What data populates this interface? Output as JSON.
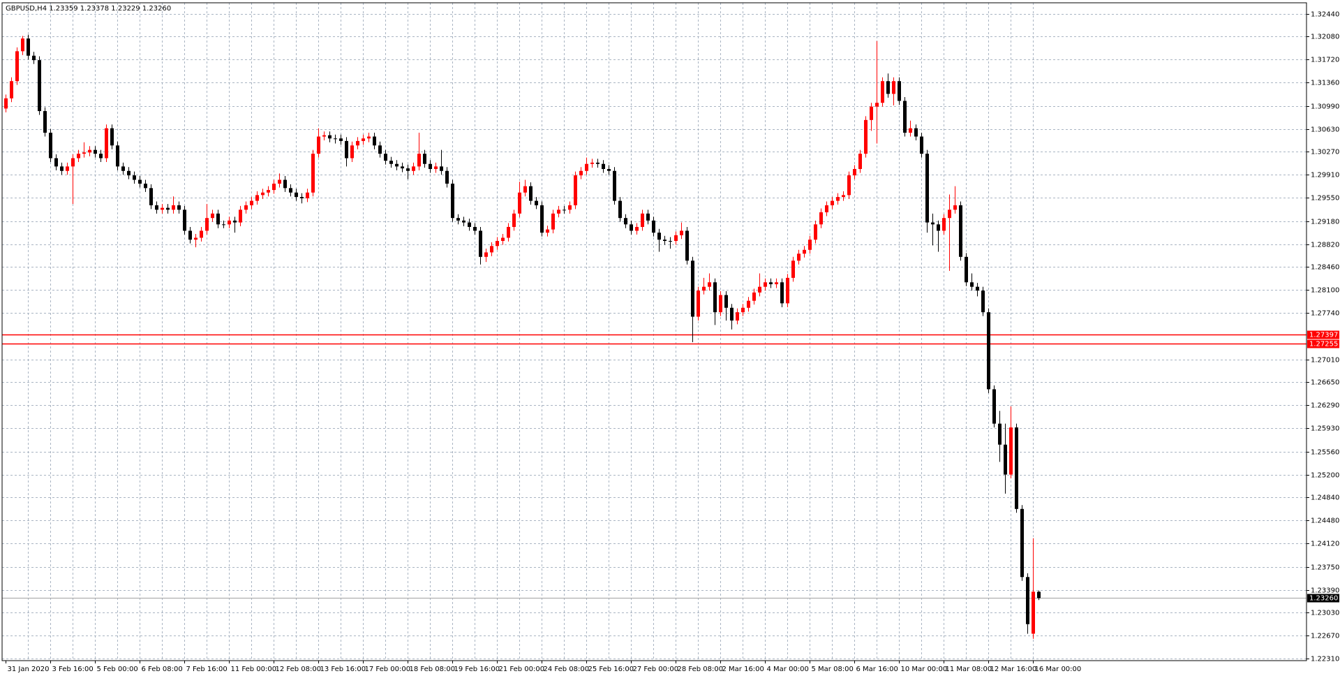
{
  "chart_data": {
    "type": "candlestick",
    "title": "GBPUSD,H4  1.23359 1.23378 1.23229 1.23260",
    "bull_color": "#ff0000",
    "bear_color": "#000000",
    "grid": true,
    "ylim": [
      1.22277,
      1.32611
    ],
    "yticks": [
      {
        "value": 1.3244,
        "label": "1.32440"
      },
      {
        "value": 1.3208,
        "label": "1.32080"
      },
      {
        "value": 1.3172,
        "label": "1.31720"
      },
      {
        "value": 1.3136,
        "label": "1.31360"
      },
      {
        "value": 1.3099,
        "label": "1.30990"
      },
      {
        "value": 1.3063,
        "label": "1.30630"
      },
      {
        "value": 1.3027,
        "label": "1.30270"
      },
      {
        "value": 1.2991,
        "label": "1.29910"
      },
      {
        "value": 1.2955,
        "label": "1.29550"
      },
      {
        "value": 1.2918,
        "label": "1.29180"
      },
      {
        "value": 1.2882,
        "label": "1.28820"
      },
      {
        "value": 1.2846,
        "label": "1.28460"
      },
      {
        "value": 1.281,
        "label": "1.28100"
      },
      {
        "value": 1.2774,
        "label": "1.27740"
      },
      {
        "value": 1.2701,
        "label": "1.27010"
      },
      {
        "value": 1.2665,
        "label": "1.26650"
      },
      {
        "value": 1.2629,
        "label": "1.26290"
      },
      {
        "value": 1.2593,
        "label": "1.25930"
      },
      {
        "value": 1.2556,
        "label": "1.25560"
      },
      {
        "value": 1.252,
        "label": "1.25200"
      },
      {
        "value": 1.2484,
        "label": "1.24840"
      },
      {
        "value": 1.2448,
        "label": "1.24480"
      },
      {
        "value": 1.2412,
        "label": "1.24120"
      },
      {
        "value": 1.2375,
        "label": "1.23750"
      },
      {
        "value": 1.2339,
        "label": "1.23390"
      },
      {
        "value": 1.2303,
        "label": "1.23030"
      },
      {
        "value": 1.2267,
        "label": "1.22670"
      },
      {
        "value": 1.2231,
        "label": "1.22310"
      }
    ],
    "hlines": [
      {
        "value": 1.27397,
        "label": "1.27397",
        "color": "#ff0000"
      },
      {
        "value": 1.27255,
        "label": "1.27255",
        "color": "#ff0000"
      }
    ],
    "price_line": {
      "value": 1.2326,
      "label": "1.23260",
      "color": "#a0a0a0"
    },
    "categories": [
      "31 Jan 2020",
      null,
      null,
      null,
      null,
      null,
      null,
      null,
      "3 Feb 16:00",
      null,
      null,
      null,
      null,
      null,
      null,
      null,
      "5 Feb 00:00",
      null,
      null,
      null,
      null,
      null,
      null,
      null,
      "6 Feb 08:00",
      null,
      null,
      null,
      null,
      null,
      null,
      null,
      "7 Feb 16:00",
      null,
      null,
      null,
      null,
      null,
      null,
      null,
      "11 Feb 00:00",
      null,
      null,
      null,
      null,
      null,
      null,
      null,
      "12 Feb 08:00",
      null,
      null,
      null,
      null,
      null,
      null,
      null,
      "13 Feb 16:00",
      null,
      null,
      null,
      null,
      null,
      null,
      null,
      "17 Feb 00:00",
      null,
      null,
      null,
      null,
      null,
      null,
      null,
      "18 Feb 08:00",
      null,
      null,
      null,
      null,
      null,
      null,
      null,
      "19 Feb 16:00",
      null,
      null,
      null,
      null,
      null,
      null,
      null,
      "21 Feb 00:00",
      null,
      null,
      null,
      null,
      null,
      null,
      null,
      "24 Feb 08:00",
      null,
      null,
      null,
      null,
      null,
      null,
      null,
      "25 Feb 16:00",
      null,
      null,
      null,
      null,
      null,
      null,
      null,
      "27 Feb 00:00",
      null,
      null,
      null,
      null,
      null,
      null,
      null,
      "28 Feb 08:00",
      null,
      null,
      null,
      null,
      null,
      null,
      null,
      "2 Mar 16:00",
      null,
      null,
      null,
      null,
      null,
      null,
      null,
      "4 Mar 00:00",
      null,
      null,
      null,
      null,
      null,
      null,
      null,
      "5 Mar 08:00",
      null,
      null,
      null,
      null,
      null,
      null,
      null,
      "6 Mar 16:00",
      null,
      null,
      null,
      null,
      null,
      null,
      null,
      "10 Mar 00:00",
      null,
      null,
      null,
      null,
      null,
      null,
      null,
      "11 Mar 08:00",
      null,
      null,
      null,
      null,
      null,
      null,
      null,
      "12 Mar 16:00",
      null,
      null,
      null,
      null,
      null,
      null,
      null,
      "16 Mar 00:00",
      null
    ],
    "ohlc": [
      [
        1.3095,
        1.3117,
        1.3089,
        1.3111
      ],
      [
        1.3111,
        1.3144,
        1.3105,
        1.3138
      ],
      [
        1.3138,
        1.3191,
        1.3132,
        1.3185
      ],
      [
        1.3185,
        1.3209,
        1.3179,
        1.3205
      ],
      [
        1.3205,
        1.3211,
        1.3172,
        1.3178
      ],
      [
        1.3178,
        1.3184,
        1.3165,
        1.3171
      ],
      [
        1.3171,
        1.3177,
        1.3085,
        1.3091
      ],
      [
        1.3091,
        1.3097,
        1.3051,
        1.3057
      ],
      [
        1.3057,
        1.3063,
        1.3011,
        1.3017
      ],
      [
        1.3017,
        1.3023,
        1.2998,
        1.3004
      ],
      [
        1.3004,
        1.301,
        1.2991,
        1.2997
      ],
      [
        1.2997,
        1.301,
        1.2991,
        1.3004
      ],
      [
        1.3004,
        1.3023,
        1.2945,
        1.3017
      ],
      [
        1.3017,
        1.303,
        1.3011,
        1.3024
      ],
      [
        1.3024,
        1.3042,
        1.3018,
        1.3026
      ],
      [
        1.3026,
        1.3036,
        1.302,
        1.303
      ],
      [
        1.303,
        1.3036,
        1.3018,
        1.3024
      ],
      [
        1.3024,
        1.303,
        1.3011,
        1.3017
      ],
      [
        1.3017,
        1.307,
        1.3011,
        1.3064
      ],
      [
        1.3064,
        1.307,
        1.3031,
        1.3037
      ],
      [
        1.3037,
        1.3043,
        1.2998,
        1.3004
      ],
      [
        1.3004,
        1.301,
        1.2991,
        1.2997
      ],
      [
        1.2997,
        1.3003,
        1.2984,
        1.299
      ],
      [
        1.299,
        1.2996,
        1.2977,
        1.2983
      ],
      [
        1.2983,
        1.2989,
        1.2971,
        1.2977
      ],
      [
        1.2977,
        1.2983,
        1.2964,
        1.297
      ],
      [
        1.297,
        1.2976,
        1.2937,
        1.2943
      ],
      [
        1.2943,
        1.2949,
        1.293,
        1.2936
      ],
      [
        1.2936,
        1.2945,
        1.293,
        1.2939
      ],
      [
        1.2939,
        1.2945,
        1.293,
        1.2936
      ],
      [
        1.2936,
        1.2957,
        1.293,
        1.2943
      ],
      [
        1.2943,
        1.2949,
        1.293,
        1.2936
      ],
      [
        1.2936,
        1.2942,
        1.2897,
        1.2903
      ],
      [
        1.2903,
        1.2909,
        1.2883,
        1.2889
      ],
      [
        1.2889,
        1.2898,
        1.2877,
        1.2892
      ],
      [
        1.2892,
        1.2909,
        1.2886,
        1.2903
      ],
      [
        1.2903,
        1.2945,
        1.2897,
        1.2923
      ],
      [
        1.2923,
        1.2936,
        1.2917,
        1.293
      ],
      [
        1.293,
        1.2936,
        1.2907,
        1.2913
      ],
      [
        1.2913,
        1.2919,
        1.2907,
        1.2913
      ],
      [
        1.2913,
        1.2925,
        1.2907,
        1.2919
      ],
      [
        1.2919,
        1.2925,
        1.29,
        1.2916
      ],
      [
        1.2916,
        1.2942,
        1.291,
        1.2936
      ],
      [
        1.2936,
        1.2949,
        1.293,
        1.2943
      ],
      [
        1.2943,
        1.2956,
        1.2937,
        1.295
      ],
      [
        1.295,
        1.2965,
        1.2944,
        1.2959
      ],
      [
        1.2959,
        1.2969,
        1.2953,
        1.2963
      ],
      [
        1.2963,
        1.2973,
        1.2957,
        1.2967
      ],
      [
        1.2967,
        1.2983,
        1.2961,
        1.2977
      ],
      [
        1.2977,
        1.2993,
        1.2971,
        1.2983
      ],
      [
        1.2983,
        1.2989,
        1.2964,
        1.297
      ],
      [
        1.297,
        1.2976,
        1.2957,
        1.2963
      ],
      [
        1.2963,
        1.2969,
        1.295,
        1.2956
      ],
      [
        1.2956,
        1.2962,
        1.2946,
        1.2954
      ],
      [
        1.2954,
        1.2969,
        1.2948,
        1.2963
      ],
      [
        1.2963,
        1.303,
        1.2957,
        1.3024
      ],
      [
        1.3024,
        1.3064,
        1.3018,
        1.3051
      ],
      [
        1.3051,
        1.3059,
        1.3045,
        1.3053
      ],
      [
        1.3053,
        1.3059,
        1.3042,
        1.3048
      ],
      [
        1.3048,
        1.3054,
        1.304,
        1.3048
      ],
      [
        1.3048,
        1.3054,
        1.3038,
        1.3044
      ],
      [
        1.3044,
        1.305,
        1.3004,
        1.3017
      ],
      [
        1.3017,
        1.3043,
        1.3011,
        1.3037
      ],
      [
        1.3037,
        1.305,
        1.3031,
        1.3044
      ],
      [
        1.3044,
        1.3054,
        1.3038,
        1.3048
      ],
      [
        1.3048,
        1.3057,
        1.3042,
        1.3051
      ],
      [
        1.3051,
        1.3057,
        1.3031,
        1.3037
      ],
      [
        1.3037,
        1.3043,
        1.3018,
        1.3024
      ],
      [
        1.3024,
        1.303,
        1.3007,
        1.3013
      ],
      [
        1.3013,
        1.3019,
        1.3002,
        1.3008
      ],
      [
        1.3008,
        1.3014,
        1.2998,
        1.3004
      ],
      [
        1.3004,
        1.301,
        1.2995,
        1.3001
      ],
      [
        1.3001,
        1.3007,
        1.2984,
        1.2997
      ],
      [
        1.2997,
        1.301,
        1.2991,
        1.3004
      ],
      [
        1.3004,
        1.3057,
        1.2998,
        1.3024
      ],
      [
        1.3024,
        1.303,
        1.3002,
        1.3008
      ],
      [
        1.3008,
        1.3014,
        1.2994,
        1.3
      ],
      [
        1.3,
        1.301,
        1.2994,
        1.3004
      ],
      [
        1.3004,
        1.303,
        1.2991,
        1.2997
      ],
      [
        1.2997,
        1.3003,
        1.2971,
        1.2977
      ],
      [
        1.2977,
        1.2983,
        1.2917,
        1.2923
      ],
      [
        1.2923,
        1.2929,
        1.2913,
        1.2919
      ],
      [
        1.2919,
        1.2925,
        1.291,
        1.2916
      ],
      [
        1.2916,
        1.2922,
        1.2903,
        1.2909
      ],
      [
        1.2909,
        1.2915,
        1.2897,
        1.2903
      ],
      [
        1.2903,
        1.2909,
        1.285,
        1.2862
      ],
      [
        1.2862,
        1.2875,
        1.2854,
        1.2869
      ],
      [
        1.2869,
        1.2885,
        1.2863,
        1.2879
      ],
      [
        1.2879,
        1.2893,
        1.2873,
        1.2887
      ],
      [
        1.2887,
        1.2898,
        1.2881,
        1.2892
      ],
      [
        1.2892,
        1.2915,
        1.2886,
        1.2909
      ],
      [
        1.2909,
        1.2936,
        1.2903,
        1.293
      ],
      [
        1.293,
        1.298,
        1.2924,
        1.2963
      ],
      [
        1.2963,
        1.2983,
        1.2957,
        1.2973
      ],
      [
        1.2973,
        1.2979,
        1.2944,
        1.295
      ],
      [
        1.295,
        1.2956,
        1.2937,
        1.2943
      ],
      [
        1.2943,
        1.2949,
        1.2894,
        1.29
      ],
      [
        1.29,
        1.2911,
        1.2894,
        1.2905
      ],
      [
        1.2905,
        1.2936,
        1.2899,
        1.293
      ],
      [
        1.293,
        1.2942,
        1.2924,
        1.2936
      ],
      [
        1.2936,
        1.2942,
        1.293,
        1.2936
      ],
      [
        1.2936,
        1.2949,
        1.293,
        1.2943
      ],
      [
        1.2943,
        1.2996,
        1.2937,
        1.299
      ],
      [
        1.299,
        1.3003,
        1.2984,
        1.2997
      ],
      [
        1.2997,
        1.3018,
        1.2991,
        1.3008
      ],
      [
        1.3008,
        1.3016,
        1.3002,
        1.301
      ],
      [
        1.301,
        1.3016,
        1.3002,
        1.3008
      ],
      [
        1.3008,
        1.3014,
        1.2994,
        1.3
      ],
      [
        1.3,
        1.3006,
        1.2991,
        1.2997
      ],
      [
        1.2997,
        1.3003,
        1.2944,
        1.295
      ],
      [
        1.295,
        1.2956,
        1.2917,
        1.2923
      ],
      [
        1.2923,
        1.2929,
        1.2907,
        1.2913
      ],
      [
        1.2913,
        1.2919,
        1.2897,
        1.2903
      ],
      [
        1.2903,
        1.2915,
        1.2897,
        1.2909
      ],
      [
        1.2909,
        1.2936,
        1.2903,
        1.293
      ],
      [
        1.293,
        1.2936,
        1.2913,
        1.2919
      ],
      [
        1.2919,
        1.2925,
        1.2894,
        1.29
      ],
      [
        1.29,
        1.2906,
        1.287,
        1.2889
      ],
      [
        1.2889,
        1.2895,
        1.2881,
        1.2887
      ],
      [
        1.2887,
        1.2893,
        1.2875,
        1.2887
      ],
      [
        1.2887,
        1.2902,
        1.2881,
        1.2896
      ],
      [
        1.2896,
        1.2916,
        1.289,
        1.2903
      ],
      [
        1.2903,
        1.2909,
        1.285,
        1.2856
      ],
      [
        1.2856,
        1.2862,
        1.2728,
        1.2768
      ],
      [
        1.2768,
        1.2815,
        1.2762,
        1.2809
      ],
      [
        1.2809,
        1.2829,
        1.2803,
        1.2815
      ],
      [
        1.2815,
        1.2836,
        1.2809,
        1.2822
      ],
      [
        1.2822,
        1.2828,
        1.2755,
        1.2775
      ],
      [
        1.2775,
        1.2808,
        1.2769,
        1.2802
      ],
      [
        1.2802,
        1.2808,
        1.2762,
        1.2782
      ],
      [
        1.2782,
        1.2788,
        1.2748,
        1.2762
      ],
      [
        1.2762,
        1.2781,
        1.2756,
        1.2775
      ],
      [
        1.2775,
        1.2788,
        1.2769,
        1.2782
      ],
      [
        1.2782,
        1.2799,
        1.2776,
        1.2793
      ],
      [
        1.2793,
        1.2812,
        1.2787,
        1.2806
      ],
      [
        1.2806,
        1.2836,
        1.28,
        1.2815
      ],
      [
        1.2815,
        1.2828,
        1.2809,
        1.2822
      ],
      [
        1.2822,
        1.2828,
        1.2813,
        1.2819
      ],
      [
        1.2819,
        1.2828,
        1.2813,
        1.2822
      ],
      [
        1.2822,
        1.2828,
        1.2783,
        1.2789
      ],
      [
        1.2789,
        1.2835,
        1.2783,
        1.2829
      ],
      [
        1.2829,
        1.2862,
        1.2823,
        1.2856
      ],
      [
        1.2856,
        1.2873,
        1.285,
        1.2867
      ],
      [
        1.2867,
        1.2879,
        1.2861,
        1.2873
      ],
      [
        1.2873,
        1.2895,
        1.2867,
        1.2889
      ],
      [
        1.2889,
        1.2919,
        1.2883,
        1.2913
      ],
      [
        1.2913,
        1.2938,
        1.2907,
        1.2932
      ],
      [
        1.2932,
        1.2949,
        1.2926,
        1.2943
      ],
      [
        1.2943,
        1.2956,
        1.2937,
        1.295
      ],
      [
        1.295,
        1.2962,
        1.2944,
        1.2956
      ],
      [
        1.2956,
        1.2965,
        1.295,
        1.2959
      ],
      [
        1.2959,
        1.2996,
        1.2953,
        1.299
      ],
      [
        1.299,
        1.3006,
        1.2984,
        1.3
      ],
      [
        1.3,
        1.303,
        1.2994,
        1.3024
      ],
      [
        1.3024,
        1.3083,
        1.3018,
        1.3077
      ],
      [
        1.3077,
        1.3104,
        1.306,
        1.3098
      ],
      [
        1.3098,
        1.3201,
        1.304,
        1.3104
      ],
      [
        1.3104,
        1.3144,
        1.3098,
        1.3138
      ],
      [
        1.3138,
        1.315,
        1.3112,
        1.3118
      ],
      [
        1.3118,
        1.3144,
        1.31,
        1.3138
      ],
      [
        1.3138,
        1.3144,
        1.3101,
        1.3107
      ],
      [
        1.3107,
        1.3113,
        1.3051,
        1.3057
      ],
      [
        1.3057,
        1.3076,
        1.3051,
        1.3064
      ],
      [
        1.3064,
        1.307,
        1.3045,
        1.3051
      ],
      [
        1.3051,
        1.3057,
        1.3018,
        1.3024
      ],
      [
        1.3024,
        1.303,
        1.29,
        1.2916
      ],
      [
        1.2916,
        1.293,
        1.288,
        1.2913
      ],
      [
        1.2913,
        1.2919,
        1.287,
        1.2903
      ],
      [
        1.2903,
        1.2929,
        1.2897,
        1.2923
      ],
      [
        1.2923,
        1.296,
        1.284,
        1.2936
      ],
      [
        1.2936,
        1.2973,
        1.293,
        1.2943
      ],
      [
        1.2943,
        1.2949,
        1.2856,
        1.2862
      ],
      [
        1.2862,
        1.2868,
        1.2816,
        1.2822
      ],
      [
        1.2822,
        1.2836,
        1.2809,
        1.2815
      ],
      [
        1.2815,
        1.2821,
        1.28,
        1.2809
      ],
      [
        1.2809,
        1.2815,
        1.2769,
        1.2775
      ],
      [
        1.2775,
        1.2781,
        1.2648,
        1.2654
      ],
      [
        1.2654,
        1.266,
        1.2594,
        1.26
      ],
      [
        1.26,
        1.262,
        1.254,
        1.2567
      ],
      [
        1.2567,
        1.26,
        1.249,
        1.252
      ],
      [
        1.252,
        1.2627,
        1.2514,
        1.2594
      ],
      [
        1.2594,
        1.26,
        1.246,
        1.2466
      ],
      [
        1.2466,
        1.2472,
        1.2353,
        1.2359
      ],
      [
        1.2359,
        1.2365,
        1.227,
        1.2285
      ],
      [
        1.227,
        1.242,
        1.2262,
        1.2336
      ],
      [
        1.23359,
        1.23378,
        1.23229,
        1.2326
      ]
    ]
  }
}
